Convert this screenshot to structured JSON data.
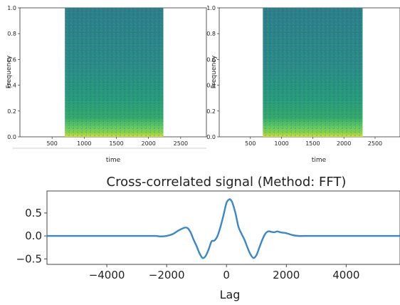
{
  "chart_data": [
    {
      "type": "heatmap",
      "xlabel": "time",
      "ylabel": "Frequency",
      "xticks": [
        500,
        1000,
        1500,
        2000,
        2500
      ],
      "yticks": [
        0.0,
        0.2,
        0.4,
        0.6,
        0.8,
        1.0
      ],
      "xlim": [
        0,
        2900
      ],
      "ylim": [
        0.0,
        1.0
      ],
      "data_extent": [
        700,
        2230
      ],
      "colormap": [
        "#440154",
        "#3b528b",
        "#21918c",
        "#5ec962",
        "#fde725"
      ]
    },
    {
      "type": "heatmap",
      "xlabel": "time",
      "ylabel": "Frequency",
      "xticks": [
        500,
        1000,
        1500,
        2000,
        2500
      ],
      "yticks": [
        0.0,
        0.2,
        0.4,
        0.6,
        0.8,
        1.0
      ],
      "xlim": [
        0,
        2900
      ],
      "ylim": [
        0.0,
        1.0
      ],
      "data_extent": [
        700,
        2300
      ],
      "colormap": [
        "#440154",
        "#3b528b",
        "#21918c",
        "#5ec962",
        "#fde725"
      ]
    },
    {
      "type": "line",
      "title": "Cross-correlated signal (Method: FFT)",
      "xlabel": "Lag",
      "ylabel": "",
      "xticks": [
        -4000,
        -2000,
        0,
        2000,
        4000
      ],
      "yticks": [
        -0.5,
        0.0,
        0.5
      ],
      "xlim": [
        -6000,
        5800
      ],
      "ylim": [
        -0.62,
        0.98
      ],
      "color": "#3a87c8",
      "series": [
        {
          "x": [
            -6000,
            -3000,
            -2400,
            -2200,
            -2000,
            -1800,
            -1600,
            -1400,
            -1300,
            -1200,
            -1100,
            -1000,
            -900,
            -800,
            -700,
            -600,
            -500,
            -400,
            -300,
            -200,
            -100,
            0,
            100,
            150,
            200,
            300,
            400,
            500,
            600,
            700,
            800,
            900,
            1000,
            1100,
            1200,
            1300,
            1400,
            1500,
            1600,
            1700,
            1800,
            1900,
            2000,
            2200,
            2400,
            2600,
            3000,
            6000
          ],
          "y": [
            0.0,
            0.0,
            0.0,
            -0.01,
            0.0,
            0.04,
            0.12,
            0.18,
            0.17,
            0.08,
            -0.08,
            -0.22,
            -0.38,
            -0.48,
            -0.44,
            -0.3,
            -0.12,
            -0.1,
            0.0,
            0.2,
            0.45,
            0.72,
            0.8,
            0.78,
            0.72,
            0.5,
            0.2,
            0.05,
            -0.08,
            -0.25,
            -0.4,
            -0.48,
            -0.42,
            -0.25,
            -0.08,
            0.05,
            0.1,
            0.09,
            0.08,
            0.1,
            0.08,
            0.07,
            0.06,
            0.02,
            0.0,
            0.0,
            0.0,
            0.0
          ]
        }
      ]
    }
  ]
}
